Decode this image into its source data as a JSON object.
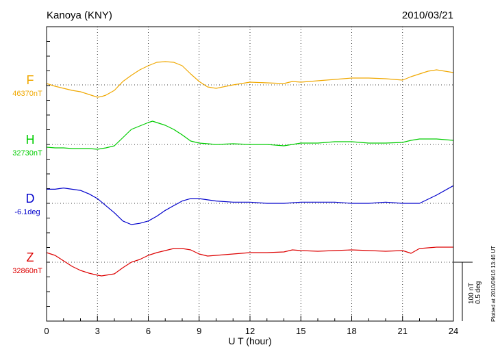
{
  "header": {
    "station": "Kanoya (KNY)",
    "date": "2010/03/21"
  },
  "chart_data": {
    "type": "line",
    "title": "Kanoya (KNY)",
    "date": "2010/03/21",
    "xlabel": "U T (hour)",
    "xlim": [
      0,
      24
    ],
    "xticks": [
      "0",
      "3",
      "6",
      "9",
      "12",
      "15",
      "18",
      "21",
      "24"
    ],
    "grid": true,
    "scale": {
      "line1": "100 nT",
      "line2": "0.5 deg"
    },
    "plotted_note": "Plotted at 2010/09/16 13:46 UT",
    "components": [
      {
        "name": "F",
        "baseline_label": "46370nT",
        "color": "#f0a800",
        "x": [
          0,
          0.5,
          1,
          1.5,
          2,
          2.5,
          3,
          3.25,
          3.5,
          4,
          4.5,
          5,
          5.5,
          6,
          6.5,
          7,
          7.5,
          8,
          8.5,
          9,
          9.5,
          10,
          11,
          12,
          13,
          14,
          14.5,
          15,
          16,
          17,
          18,
          19,
          20,
          21,
          21.5,
          22,
          22.5,
          23,
          24
        ],
        "y": [
          2,
          -2,
          -5,
          -8,
          -10,
          -14,
          -18,
          -17,
          -15,
          -8,
          5,
          14,
          22,
          28,
          33,
          34,
          33,
          28,
          16,
          5,
          -3,
          -5,
          0,
          4,
          3,
          2,
          5,
          4,
          6,
          8,
          10,
          10,
          9,
          7,
          12,
          16,
          20,
          22,
          18
        ]
      },
      {
        "name": "H",
        "baseline_label": "32730nT",
        "color": "#00cc00",
        "x": [
          0,
          0.5,
          1,
          1.5,
          2,
          2.5,
          3,
          3.5,
          4,
          4.5,
          5,
          5.5,
          6,
          6.25,
          6.5,
          7,
          7.5,
          8,
          8.5,
          9,
          10,
          11,
          12,
          13,
          14,
          15,
          16,
          17,
          18,
          19,
          20,
          21,
          21.5,
          22,
          23,
          24
        ],
        "y": [
          -4,
          -5,
          -5,
          -6,
          -6,
          -6,
          -7,
          -5,
          -2,
          10,
          22,
          27,
          32,
          34,
          32,
          28,
          22,
          14,
          5,
          2,
          0,
          1,
          0,
          0,
          -2,
          2,
          2,
          4,
          4,
          2,
          2,
          3,
          6,
          8,
          8,
          6
        ]
      },
      {
        "name": "D",
        "baseline_label": "-6.1deg",
        "color": "#0000cc",
        "x": [
          0,
          0.5,
          1,
          1.5,
          2,
          2.5,
          3,
          3.5,
          4,
          4.5,
          5,
          5.5,
          6,
          6.5,
          7,
          7.5,
          8,
          8.5,
          9,
          10,
          11,
          12,
          13,
          14,
          15,
          16,
          17,
          18,
          19,
          20,
          21,
          22,
          23,
          24
        ],
        "y": [
          0.12,
          0.12,
          0.13,
          0.12,
          0.11,
          0.08,
          0.04,
          -0.02,
          -0.08,
          -0.15,
          -0.18,
          -0.17,
          -0.15,
          -0.11,
          -0.06,
          -0.02,
          0.02,
          0.04,
          0.04,
          0.02,
          0.01,
          0.01,
          0.0,
          0.0,
          0.01,
          0.01,
          0.01,
          0.0,
          0.0,
          0.01,
          0.0,
          0.0,
          0.07,
          0.15
        ]
      },
      {
        "name": "Z",
        "baseline_label": "32860nT",
        "color": "#dd0000",
        "x": [
          0,
          0.5,
          1,
          1.5,
          2,
          2.5,
          3,
          3.25,
          3.5,
          4,
          4.5,
          5,
          5.5,
          6,
          6.5,
          7,
          7.5,
          8,
          8.5,
          9,
          9.5,
          10,
          11,
          12,
          13,
          14,
          14.5,
          15,
          16,
          17,
          18,
          19,
          20,
          21,
          21.5,
          22,
          23,
          24
        ],
        "y": [
          14,
          10,
          2,
          -6,
          -12,
          -16,
          -19,
          -20,
          -19,
          -17,
          -8,
          0,
          4,
          10,
          14,
          17,
          20,
          20,
          18,
          12,
          9,
          10,
          12,
          14,
          14,
          15,
          18,
          17,
          16,
          17,
          18,
          17,
          16,
          17,
          13,
          20,
          22,
          22
        ]
      }
    ]
  }
}
